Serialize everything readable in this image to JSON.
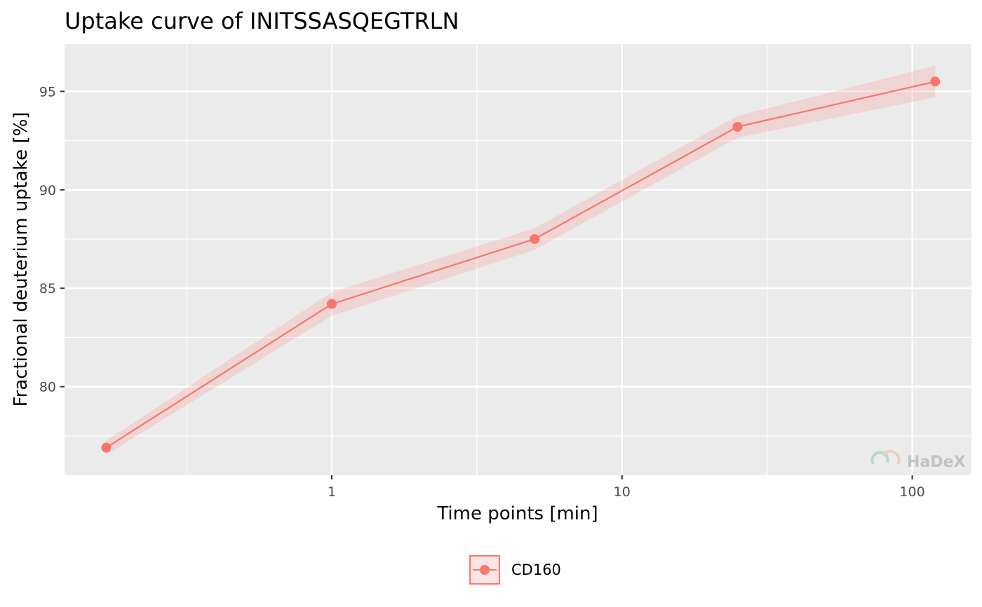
{
  "chart_data": {
    "type": "line",
    "title": "Uptake curve of INITSSASQEGTRLN",
    "xlabel": "Time points [min]",
    "ylabel": "Fractional deuterium uptake [%]",
    "x_scale": "log10",
    "xlim": [
      0.12,
      160
    ],
    "ylim": [
      75.5,
      97.4
    ],
    "x_ticks": [
      1,
      10,
      100
    ],
    "x_tick_labels": [
      "1",
      "10",
      "100"
    ],
    "y_ticks": [
      80,
      85,
      90,
      95
    ],
    "y_tick_labels": [
      "80",
      "85",
      "90",
      "95"
    ],
    "grid": true,
    "legend_position": "bottom",
    "series": [
      {
        "name": "CD160",
        "color": "#F8766D",
        "x": [
          0.167,
          1,
          5,
          25,
          120
        ],
        "y": [
          76.9,
          84.2,
          87.5,
          93.2,
          95.5
        ],
        "err": [
          0.35,
          0.6,
          0.55,
          0.55,
          0.8
        ]
      }
    ]
  },
  "watermark": {
    "text": "HaDeX"
  }
}
